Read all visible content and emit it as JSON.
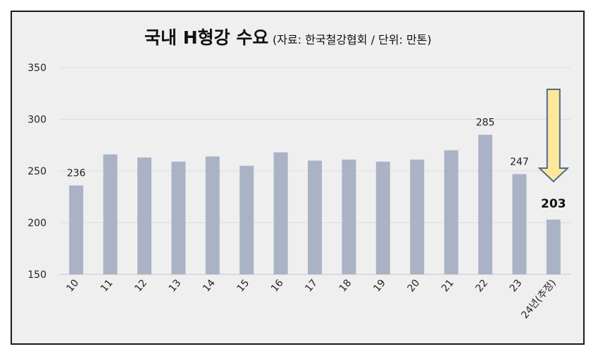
{
  "chart_data": {
    "type": "bar",
    "title": "국내 H형강 수요",
    "subtitle": "(자료: 한국철강협회 / 단위: 만톤)",
    "categories": [
      "10",
      "11",
      "12",
      "13",
      "14",
      "15",
      "16",
      "17",
      "18",
      "19",
      "20",
      "21",
      "22",
      "23",
      "24년(추정)"
    ],
    "values": [
      236,
      266,
      263,
      259,
      264,
      255,
      268,
      260,
      261,
      259,
      261,
      270,
      285,
      247,
      203
    ],
    "data_labels": {
      "0": "236",
      "12": "285",
      "13": "247",
      "14": "203"
    },
    "highlight_label_index": 14,
    "ylim": [
      150,
      350
    ],
    "yticks": [
      150,
      200,
      250,
      300,
      350
    ],
    "grid": true,
    "bar_color": "#aab3c6",
    "arrow_color": "#fce79a",
    "arrow_stroke": "#4f6c8c",
    "annotation": "down-arrow-above-last-bar"
  }
}
